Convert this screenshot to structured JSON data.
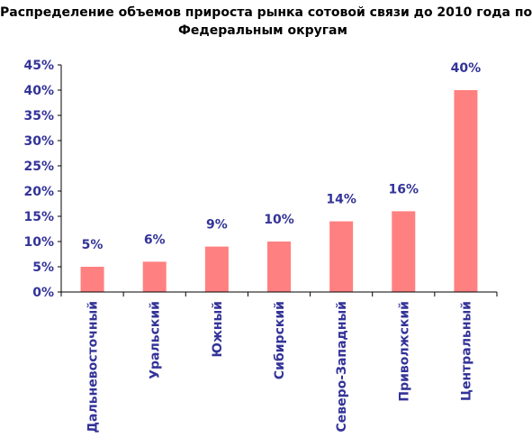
{
  "chart_data": {
    "type": "bar",
    "title_lines": [
      "Распределение объемов прироста рынка сотовой связи до 2010 года по",
      "Федеральным округам"
    ],
    "categories": [
      "Дальневосточный",
      "Уральский",
      "Южный",
      "Сибирский",
      "Северо-Западный",
      "Приволжский",
      "Центральный"
    ],
    "values": [
      5,
      6,
      9,
      10,
      14,
      16,
      40
    ],
    "data_labels": [
      "5%",
      "6%",
      "9%",
      "10%",
      "14%",
      "16%",
      "40%"
    ],
    "yticks": [
      "0%",
      "5%",
      "10%",
      "15%",
      "20%",
      "25%",
      "30%",
      "35%",
      "40%",
      "45%"
    ],
    "ylim": [
      0,
      45
    ],
    "xlabel": "",
    "ylabel": "",
    "grid": false,
    "colors": {
      "bar": "#ff8080",
      "label": "#333399",
      "axis": "#000000"
    }
  }
}
